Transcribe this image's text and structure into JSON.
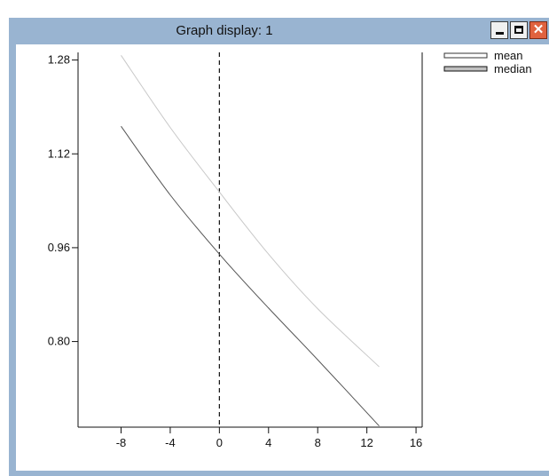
{
  "window": {
    "title": "Graph display: 1",
    "controls": {
      "minimize": "minimize",
      "maximize": "maximize",
      "close": "close"
    },
    "title_color": "#99b4d1"
  },
  "chart_data": {
    "type": "line",
    "xlim": [
      -11.5,
      16.5
    ],
    "ylim": [
      0.654,
      1.293
    ],
    "x_ticks": [
      -8,
      -4,
      0,
      4,
      8,
      12,
      16
    ],
    "y_ticks": [
      0.8,
      0.96,
      1.12,
      1.28
    ],
    "y_tick_labels": [
      "0.80",
      "0.96",
      "1.12",
      "1.28"
    ],
    "vline": 0,
    "legend_position": "top-right outside",
    "series": [
      {
        "name": "mean",
        "color": "#c8c8c8",
        "x": [
          -8,
          -4,
          0,
          4,
          8,
          13
        ],
        "y": [
          1.288,
          1.165,
          1.055,
          0.949,
          0.856,
          0.757
        ]
      },
      {
        "name": "median",
        "color": "#555555",
        "x": [
          -8,
          -4,
          0,
          4,
          8,
          13
        ],
        "y": [
          1.167,
          1.05,
          0.949,
          0.857,
          0.769,
          0.656
        ]
      }
    ]
  }
}
